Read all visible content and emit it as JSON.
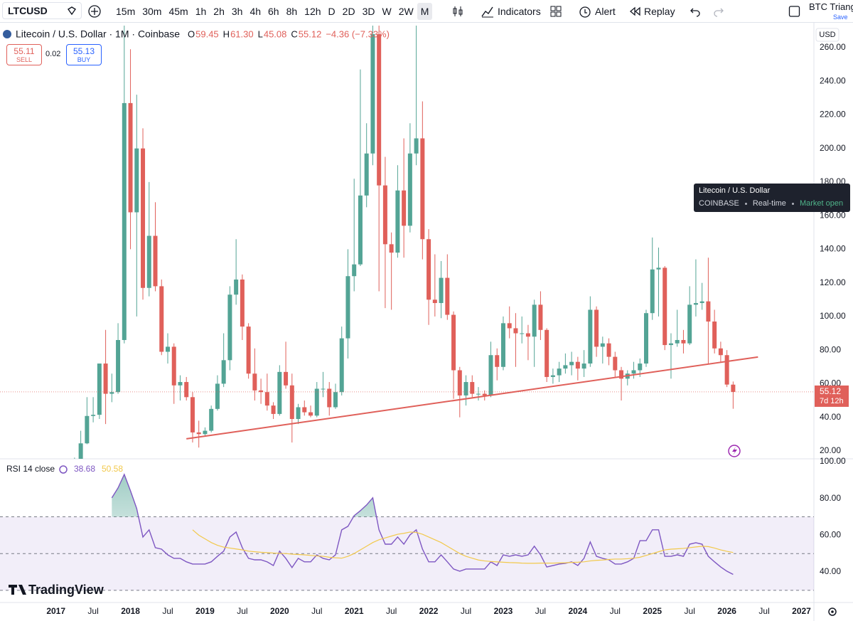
{
  "toolbar": {
    "symbol": "LTCUSD",
    "intervals": [
      "15m",
      "30m",
      "45m",
      "1h",
      "2h",
      "3h",
      "4h",
      "6h",
      "8h",
      "12h",
      "D",
      "2D",
      "3D",
      "W",
      "2W",
      "M"
    ],
    "selected_interval": "M",
    "indicators": "Indicators",
    "alert": "Alert",
    "replay": "Replay",
    "layout_name": "BTC Triang",
    "save": "Save"
  },
  "order_panel": {
    "sell_price": 55.11,
    "sell_label": "SELL",
    "spread": 0.02,
    "buy_price": 55.13,
    "buy_label": "BUY"
  },
  "tooltip": {
    "title": "Litecoin / U.S. Dollar",
    "exchange": "COINBASE",
    "feed": "Real-time",
    "status": "Market open"
  },
  "branding": "TradingView",
  "chart_data": [
    {
      "type": "candlestick",
      "title": "Litecoin / U.S. Dollar · 1M · Coinbase",
      "currency": "USD",
      "ohlc_legend": {
        "labels": [
          "O",
          "H",
          "L",
          "C"
        ],
        "values": [
          "59.45",
          "61.30",
          "45.08",
          "55.12"
        ],
        "change": "−4.36 (−7.33%)"
      },
      "countdown": "7d 12h",
      "up_color": "#53a495",
      "down_color": "#e0605a",
      "categories": [
        "2017-04",
        "2017-05",
        "2017-06",
        "2017-07",
        "2017-08",
        "2017-09",
        "2017-10",
        "2017-11",
        "2017-12",
        "2018-01",
        "2018-02",
        "2018-03",
        "2018-04",
        "2018-05",
        "2018-06",
        "2018-07",
        "2018-08",
        "2018-09",
        "2018-10",
        "2018-11",
        "2018-12",
        "2019-01",
        "2019-02",
        "2019-03",
        "2019-04",
        "2019-05",
        "2019-06",
        "2019-07",
        "2019-08",
        "2019-09",
        "2019-10",
        "2019-11",
        "2019-12",
        "2020-01",
        "2020-02",
        "2020-03",
        "2020-04",
        "2020-05",
        "2020-06",
        "2020-07",
        "2020-08",
        "2020-09",
        "2020-10",
        "2020-11",
        "2020-12",
        "2021-01",
        "2021-02",
        "2021-03",
        "2021-04",
        "2021-05",
        "2021-06",
        "2021-07",
        "2021-08",
        "2021-09",
        "2021-10",
        "2021-11",
        "2021-12",
        "2022-01",
        "2022-02",
        "2022-03",
        "2022-04",
        "2022-05",
        "2022-06",
        "2022-07",
        "2022-08",
        "2022-09",
        "2022-10",
        "2022-11",
        "2022-12",
        "2023-01",
        "2023-02",
        "2023-03",
        "2023-04",
        "2023-05",
        "2023-06",
        "2023-07",
        "2023-08",
        "2023-09",
        "2023-10",
        "2023-11",
        "2023-12",
        "2024-01",
        "2024-02",
        "2024-03",
        "2024-04",
        "2024-05",
        "2024-06",
        "2024-07",
        "2024-08",
        "2024-09",
        "2024-10",
        "2024-11",
        "2024-12",
        "2025-01",
        "2025-02",
        "2025-03",
        "2025-04",
        "2025-05",
        "2025-06",
        "2025-07",
        "2025-08",
        "2025-09",
        "2025-10",
        "2025-11",
        "2025-12",
        "2026-01",
        "2026-02"
      ],
      "open": [
        7.5,
        15.1,
        24.5,
        40.8,
        41.5,
        72,
        54,
        55,
        86,
        227,
        162,
        200,
        117,
        148,
        118,
        79,
        82,
        59,
        61,
        52,
        31,
        30,
        32,
        45,
        60,
        74,
        113,
        122,
        94,
        66,
        56,
        55,
        47,
        42,
        67,
        59,
        39,
        46,
        43,
        41,
        57,
        57,
        46,
        55,
        87,
        124,
        131,
        172,
        197,
        268,
        178,
        143,
        138,
        175,
        154,
        197,
        206,
        146,
        110,
        108,
        123,
        101,
        68,
        53,
        61,
        54,
        54,
        53,
        77,
        70,
        96,
        93,
        90,
        90,
        88,
        107,
        92,
        64,
        65,
        69,
        71,
        73,
        69,
        72,
        104,
        82,
        84,
        76,
        68,
        63,
        66,
        68,
        72,
        102,
        128,
        129,
        83,
        84,
        86,
        84,
        107,
        108,
        109,
        97,
        81,
        77,
        59.45
      ],
      "high": [
        16,
        32,
        52,
        52,
        70,
        92,
        66,
        96,
        420,
        259,
        232,
        212,
        180,
        168,
        122,
        90,
        84,
        65,
        64,
        55,
        38,
        34,
        47,
        65,
        90,
        118,
        146,
        125,
        96,
        81,
        63,
        66,
        49,
        71,
        85,
        66,
        48,
        50,
        47,
        61,
        67,
        61,
        60,
        94,
        140,
        182,
        247,
        215,
        413,
        412,
        195,
        150,
        190,
        206,
        215,
        295,
        228,
        152,
        137,
        133,
        137,
        103,
        70,
        65,
        65,
        58,
        56,
        85,
        81,
        100,
        106,
        102,
        100,
        95,
        110,
        115,
        93,
        69,
        73,
        78,
        79,
        76,
        80,
        112,
        106,
        88,
        87,
        79,
        70,
        68,
        73,
        75,
        104,
        147,
        141,
        130,
        90,
        104,
        92,
        118,
        134,
        120,
        135,
        104,
        85,
        80,
        61.3
      ],
      "low": [
        7,
        14.5,
        24,
        37,
        39,
        36,
        49,
        54,
        84,
        140,
        100,
        110,
        112,
        115,
        77,
        72,
        48,
        50,
        50,
        25,
        22,
        29,
        31,
        44,
        58,
        68,
        107,
        86,
        63,
        50,
        48,
        44,
        39,
        41,
        57,
        25,
        36,
        41,
        40,
        40,
        52,
        41,
        45,
        53,
        75,
        115,
        130,
        165,
        190,
        115,
        105,
        104,
        135,
        135,
        150,
        190,
        134,
        95,
        100,
        99,
        98,
        51,
        40,
        47,
        52,
        50,
        50,
        52,
        62,
        68,
        87,
        70,
        84,
        74,
        70,
        86,
        61,
        60,
        61,
        66,
        65,
        62,
        64,
        70,
        76,
        72,
        71,
        64,
        50,
        59,
        63,
        64,
        70,
        98,
        100,
        80,
        63,
        82,
        78,
        83,
        100,
        104,
        72,
        78,
        73,
        58,
        45.08
      ],
      "close": [
        15.1,
        24.5,
        40.8,
        41.5,
        72,
        54,
        55,
        86,
        227,
        162,
        200,
        117,
        148,
        118,
        79,
        82,
        59,
        61,
        52,
        31,
        30,
        32,
        45,
        60,
        74,
        113,
        122,
        94,
        66,
        56,
        55,
        47,
        42,
        67,
        59,
        39,
        46,
        43,
        41,
        57,
        57,
        46,
        55,
        87,
        124,
        131,
        172,
        197,
        268,
        178,
        143,
        138,
        175,
        154,
        197,
        206,
        146,
        110,
        108,
        123,
        101,
        68,
        53,
        61,
        54,
        54,
        53,
        77,
        70,
        96,
        93,
        90,
        90,
        88,
        107,
        92,
        64,
        65,
        69,
        71,
        73,
        69,
        72,
        104,
        82,
        84,
        76,
        68,
        63,
        66,
        68,
        72,
        102,
        128,
        129,
        83,
        84,
        86,
        84,
        107,
        108,
        109,
        97,
        81,
        77,
        59.48,
        55.12
      ],
      "trendline": {
        "color": "#e0605a",
        "start": {
          "x": "2018-10",
          "y": 27.2
        },
        "end": {
          "x": "2026-06",
          "y": 75.9
        }
      },
      "xlim": [
        "2016-04",
        "2027-03"
      ],
      "xticks": [
        {
          "value": "2017-01",
          "label": "2017"
        },
        {
          "value": "2017-07",
          "label": "Jul"
        },
        {
          "value": "2018-01",
          "label": "2018"
        },
        {
          "value": "2018-07",
          "label": "Jul"
        },
        {
          "value": "2019-01",
          "label": "2019"
        },
        {
          "value": "2019-07",
          "label": "Jul"
        },
        {
          "value": "2020-01",
          "label": "2020"
        },
        {
          "value": "2020-07",
          "label": "Jul"
        },
        {
          "value": "2021-01",
          "label": "2021"
        },
        {
          "value": "2021-07",
          "label": "Jul"
        },
        {
          "value": "2022-01",
          "label": "2022"
        },
        {
          "value": "2022-07",
          "label": "Jul"
        },
        {
          "value": "2023-01",
          "label": "2023"
        },
        {
          "value": "2023-07",
          "label": "Jul"
        },
        {
          "value": "2024-01",
          "label": "2024"
        },
        {
          "value": "2024-07",
          "label": "Jul"
        },
        {
          "value": "2025-01",
          "label": "2025"
        },
        {
          "value": "2025-07",
          "label": "Jul"
        },
        {
          "value": "2026-01",
          "label": "2026"
        },
        {
          "value": "2026-07",
          "label": "Jul"
        },
        {
          "value": "2027-01",
          "label": "2027"
        }
      ],
      "ylim": [
        15.3,
        273.1
      ],
      "yticks": [
        {
          "value": 20,
          "label": "20.00"
        },
        {
          "value": 40,
          "label": "40.00"
        },
        {
          "value": 60,
          "label": "60.00"
        },
        {
          "value": 80,
          "label": "80.00"
        },
        {
          "value": 100,
          "label": "100.00"
        },
        {
          "value": 120,
          "label": "120.00"
        },
        {
          "value": 140,
          "label": "140.00"
        },
        {
          "value": 160,
          "label": "160.00"
        },
        {
          "value": 180,
          "label": "180.00"
        },
        {
          "value": 200,
          "label": "200.00"
        },
        {
          "value": 220,
          "label": "220.00"
        },
        {
          "value": 240,
          "label": "240.00"
        },
        {
          "value": 260,
          "label": "260.00"
        }
      ],
      "grid": false
    },
    {
      "type": "line",
      "title": "RSI 14 close",
      "x": [
        "2017-10",
        "2017-11",
        "2017-12",
        "2018-01",
        "2018-02",
        "2018-03",
        "2018-04",
        "2018-05",
        "2018-06",
        "2018-07",
        "2018-08",
        "2018-09",
        "2018-10",
        "2018-11",
        "2018-12",
        "2019-01",
        "2019-02",
        "2019-03",
        "2019-04",
        "2019-05",
        "2019-06",
        "2019-07",
        "2019-08",
        "2019-09",
        "2019-10",
        "2019-11",
        "2019-12",
        "2020-01",
        "2020-02",
        "2020-03",
        "2020-04",
        "2020-05",
        "2020-06",
        "2020-07",
        "2020-08",
        "2020-09",
        "2020-10",
        "2020-11",
        "2020-12",
        "2021-01",
        "2021-02",
        "2021-03",
        "2021-04",
        "2021-05",
        "2021-06",
        "2021-07",
        "2021-08",
        "2021-09",
        "2021-10",
        "2021-11",
        "2021-12",
        "2022-01",
        "2022-02",
        "2022-03",
        "2022-04",
        "2022-05",
        "2022-06",
        "2022-07",
        "2022-08",
        "2022-09",
        "2022-10",
        "2022-11",
        "2022-12",
        "2023-01",
        "2023-02",
        "2023-03",
        "2023-04",
        "2023-05",
        "2023-06",
        "2023-07",
        "2023-08",
        "2023-09",
        "2023-10",
        "2023-11",
        "2023-12",
        "2024-01",
        "2024-02",
        "2024-03",
        "2024-04",
        "2024-05",
        "2024-06",
        "2024-07",
        "2024-08",
        "2024-09",
        "2024-10",
        "2024-11",
        "2024-12",
        "2025-01",
        "2025-02",
        "2025-03",
        "2025-04",
        "2025-05",
        "2025-06",
        "2025-07",
        "2025-08",
        "2025-09",
        "2025-10",
        "2025-11",
        "2025-12",
        "2026-01",
        "2026-02"
      ],
      "series": [
        {
          "color": "#7e57c2",
          "values": [
            80.3,
            85.7,
            93,
            84.1,
            74.5,
            59,
            62.9,
            53.2,
            52.4,
            49.3,
            47.4,
            47.4,
            45.5,
            44.3,
            44.3,
            44.3,
            45.5,
            48.5,
            51.3,
            59,
            61.7,
            53.2,
            47.4,
            46.6,
            46.6,
            45.5,
            43.5,
            51.3,
            47.4,
            42.4,
            47.4,
            45.5,
            45.5,
            49.3,
            47.4,
            46.6,
            49.3,
            62.9,
            64.8,
            70.6,
            73.3,
            76.4,
            80.3,
            62.9,
            55.1,
            55.1,
            59,
            55.1,
            60.2,
            62.9,
            52.4,
            45.5,
            45.5,
            49.3,
            45.5,
            41.6,
            40.4,
            41.6,
            41.6,
            41.6,
            41.6,
            45.5,
            43.5,
            49.3,
            48.5,
            49.3,
            48.5,
            49.3,
            54,
            49.3,
            42.7,
            43.5,
            44.3,
            44.7,
            45.5,
            43.5,
            47.4,
            56.3,
            48.5,
            47.4,
            46.6,
            44.3,
            44.3,
            45.5,
            47.4,
            57,
            57,
            62.9,
            62.9,
            48.5,
            48.5,
            49.3,
            48.5,
            55.1,
            55.9,
            55.1,
            48.5,
            45.5,
            42.7,
            40.4,
            38.68
          ]
        },
        {
          "color": "#f2c94c",
          "values": [
            null,
            null,
            null,
            null,
            null,
            null,
            null,
            null,
            null,
            null,
            null,
            null,
            null,
            62.9,
            60,
            58,
            56,
            54.5,
            53.5,
            53,
            52.5,
            52,
            51.3,
            51,
            50.7,
            50.5,
            50.3,
            50.1,
            50,
            49.7,
            49.5,
            49.3,
            49,
            48.7,
            48.5,
            48,
            47.7,
            47.5,
            48.5,
            50,
            52,
            54,
            56,
            57.5,
            58.5,
            59.5,
            60.5,
            61,
            61.7,
            61.5,
            60.5,
            59,
            57.5,
            56,
            54,
            52,
            50,
            48.5,
            47.5,
            46.5,
            46,
            45.7,
            45.5,
            45.3,
            45.1,
            45,
            44.8,
            44.7,
            44.7,
            44.8,
            44.8,
            44.8,
            44.9,
            45,
            45.2,
            45.3,
            45.5,
            46,
            46.3,
            46.5,
            46.8,
            47,
            47,
            47.2,
            47.5,
            48,
            49,
            50,
            51,
            52,
            52.4,
            52.6,
            52.8,
            53.2,
            53.6,
            54,
            53.8,
            53,
            52,
            51.2,
            50.58
          ]
        }
      ],
      "levels": [
        70,
        50,
        30
      ],
      "band_color": "#7e57c2",
      "overbought_color": "#53a495",
      "ylim": [
        23.4,
        101.5
      ],
      "yticks": [
        {
          "value": 40,
          "label": "40.00"
        },
        {
          "value": 60,
          "label": "60.00"
        },
        {
          "value": 80,
          "label": "80.00"
        },
        {
          "value": 100,
          "label": "100.00"
        }
      ]
    }
  ]
}
